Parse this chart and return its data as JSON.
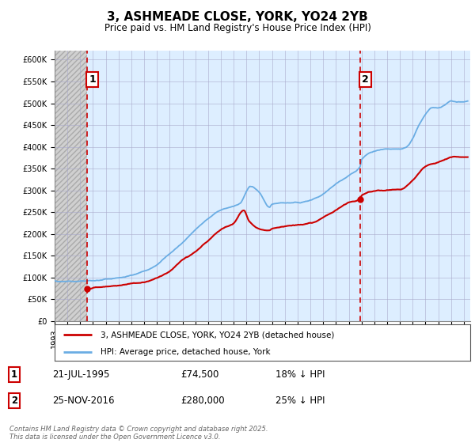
{
  "title": "3, ASHMEADE CLOSE, YORK, YO24 2YB",
  "subtitle": "Price paid vs. HM Land Registry's House Price Index (HPI)",
  "ytick_values": [
    0,
    50000,
    100000,
    150000,
    200000,
    250000,
    300000,
    350000,
    400000,
    450000,
    500000,
    550000,
    600000
  ],
  "ylim": [
    0,
    620000
  ],
  "xlim_start": 1993.0,
  "xlim_end": 2025.5,
  "purchase1_year": 1995.55,
  "purchase1_price": 74500,
  "purchase2_year": 2016.9,
  "purchase2_price": 280000,
  "hpi_line_color": "#6aade4",
  "price_line_color": "#cc0000",
  "vline_color": "#cc0000",
  "plot_bg_color": "#ddeeff",
  "hatch_bg_color": "#e8e8e8",
  "legend_label1": "3, ASHMEADE CLOSE, YORK, YO24 2YB (detached house)",
  "legend_label2": "HPI: Average price, detached house, York",
  "table_row1": [
    "1",
    "21-JUL-1995",
    "£74,500",
    "18% ↓ HPI"
  ],
  "table_row2": [
    "2",
    "25-NOV-2016",
    "£280,000",
    "25% ↓ HPI"
  ],
  "copyright_text": "Contains HM Land Registry data © Crown copyright and database right 2025.\nThis data is licensed under the Open Government Licence v3.0.",
  "bg_color": "#ffffff"
}
